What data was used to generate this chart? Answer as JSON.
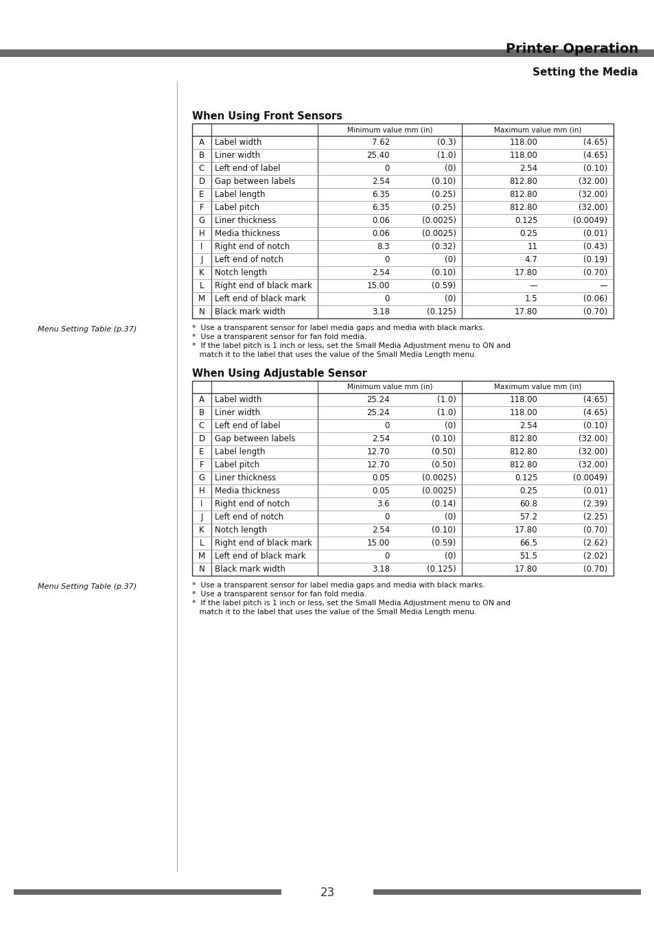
{
  "page_title": "Printer Operation",
  "page_subtitle": "Setting the Media",
  "page_number": "23",
  "header_bar_color": "#686868",
  "section1_title": "When Using Front Sensors",
  "section2_title": "When Using Adjustable Sensor",
  "front_sensor_rows": [
    [
      "A",
      "Label width",
      "7.62",
      "(0.3)",
      "118.00",
      "(4.65)"
    ],
    [
      "B",
      "Liner width",
      "25.40",
      "(1.0)",
      "118.00",
      "(4.65)"
    ],
    [
      "C",
      "Left end of label",
      "0",
      "(0)",
      "2.54",
      "(0.10)"
    ],
    [
      "D",
      "Gap between labels",
      "2.54",
      "(0.10)",
      "812.80",
      "(32.00)"
    ],
    [
      "E",
      "Label length",
      "6.35",
      "(0.25)",
      "812.80",
      "(32.00)"
    ],
    [
      "F",
      "Label pitch",
      "6.35",
      "(0.25)",
      "812.80",
      "(32.00)"
    ],
    [
      "G",
      "Liner thickness",
      "0.06",
      "(0.0025)",
      "0.125",
      "(0.0049)"
    ],
    [
      "H",
      "Media thickness",
      "0.06",
      "(0.0025)",
      "0.25",
      "(0.01)"
    ],
    [
      "I",
      "Right end of notch",
      "8.3",
      "(0.32)",
      "11",
      "(0.43)"
    ],
    [
      "J",
      "Left end of notch",
      "0",
      "(0)",
      "4.7",
      "(0.19)"
    ],
    [
      "K",
      "Notch length",
      "2.54",
      "(0.10)",
      "17.80",
      "(0.70)"
    ],
    [
      "L",
      "Right end of black mark",
      "15.00",
      "(0.59)",
      "—",
      "—"
    ],
    [
      "M",
      "Left end of black mark",
      "0",
      "(0)",
      "1.5",
      "(0.06)"
    ],
    [
      "N",
      "Black mark width",
      "3.18",
      "(0.125)",
      "17.80",
      "(0.70)"
    ]
  ],
  "adjustable_sensor_rows": [
    [
      "A",
      "Label width",
      "25.24",
      "(1.0)",
      "118.00",
      "(4.65)"
    ],
    [
      "B",
      "Liner width",
      "25.24",
      "(1.0)",
      "118.00",
      "(4.65)"
    ],
    [
      "C",
      "Left end of label",
      "0",
      "(0)",
      "2.54",
      "(0.10)"
    ],
    [
      "D",
      "Gap between labels",
      "2.54",
      "(0.10)",
      "812.80",
      "(32.00)"
    ],
    [
      "E",
      "Label length",
      "12.70",
      "(0.50)",
      "812.80",
      "(32.00)"
    ],
    [
      "F",
      "Label pitch",
      "12.70",
      "(0.50)",
      "812.80",
      "(32.00)"
    ],
    [
      "G",
      "Liner thickness",
      "0.05",
      "(0.0025)",
      "0.125",
      "(0.0049)"
    ],
    [
      "H",
      "Media thickness",
      "0.05",
      "(0.0025)",
      "0.25",
      "(0.01)"
    ],
    [
      "I",
      "Right end of notch",
      "3.6",
      "(0.14)",
      "60.8",
      "(2.39)"
    ],
    [
      "J",
      "Left end of notch",
      "0",
      "(0)",
      "57.2",
      "(2.25)"
    ],
    [
      "K",
      "Notch length",
      "2.54",
      "(0.10)",
      "17.80",
      "(0.70)"
    ],
    [
      "L",
      "Right end of black mark",
      "15.00",
      "(0.59)",
      "66.5",
      "(2.62)"
    ],
    [
      "M",
      "Left end of black mark",
      "0",
      "(0)",
      "51.5",
      "(2.02)"
    ],
    [
      "N",
      "Black mark width",
      "3.18",
      "(0.125)",
      "17.80",
      "(0.70)"
    ]
  ],
  "footnotes": [
    "*  Use a transparent sensor for label media gaps and media with black marks.",
    "*  Use a transparent sensor for fan fold media.",
    "*  If the label pitch is 1 inch or less, set the Small Media Adjustment menu to ON and",
    "   match it to the label that uses the value of the Small Media Length menu."
  ],
  "menu_setting_label": "Menu Setting Table (p.37)",
  "background_color": "#ffffff",
  "table_line_color": "#333333",
  "row_line_color": "#888888"
}
